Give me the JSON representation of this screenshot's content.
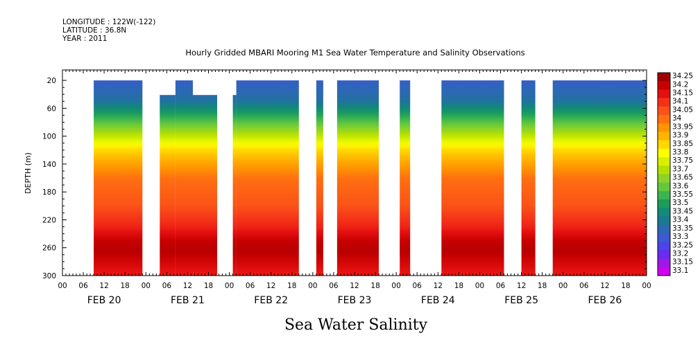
{
  "chart_data": {
    "type": "heatmap",
    "header_lines": [
      "LONGITUDE : 122W(-122)",
      "LATITUDE : 36.8N",
      "YEAR : 2011"
    ],
    "title": "Hourly Gridded MBARI Mooring M1 Sea Water Temperature and Salinity Observations",
    "xlabel": "Sea Water Salinity",
    "ylabel": "DEPTH (m)",
    "xlim_hours": [
      0,
      168
    ],
    "ylim": [
      300,
      5
    ],
    "y_ticks": [
      20,
      60,
      100,
      140,
      180,
      220,
      260,
      300
    ],
    "x_hour_ticks": [
      {
        "hour": 0,
        "label": "00"
      },
      {
        "hour": 6,
        "label": "06"
      },
      {
        "hour": 12,
        "label": "12"
      },
      {
        "hour": 18,
        "label": "18"
      },
      {
        "hour": 24,
        "label": "00"
      },
      {
        "hour": 30,
        "label": "06"
      },
      {
        "hour": 36,
        "label": "12"
      },
      {
        "hour": 42,
        "label": "18"
      },
      {
        "hour": 48,
        "label": "00"
      },
      {
        "hour": 54,
        "label": "06"
      },
      {
        "hour": 60,
        "label": "12"
      },
      {
        "hour": 66,
        "label": "18"
      },
      {
        "hour": 72,
        "label": "00"
      },
      {
        "hour": 78,
        "label": "06"
      },
      {
        "hour": 84,
        "label": "12"
      },
      {
        "hour": 90,
        "label": "18"
      },
      {
        "hour": 96,
        "label": "00"
      },
      {
        "hour": 102,
        "label": "06"
      },
      {
        "hour": 108,
        "label": "12"
      },
      {
        "hour": 114,
        "label": "18"
      },
      {
        "hour": 120,
        "label": "00"
      },
      {
        "hour": 126,
        "label": "06"
      },
      {
        "hour": 132,
        "label": "12"
      },
      {
        "hour": 138,
        "label": "18"
      },
      {
        "hour": 144,
        "label": "00"
      },
      {
        "hour": 150,
        "label": "06"
      },
      {
        "hour": 156,
        "label": "12"
      },
      {
        "hour": 162,
        "label": "18"
      },
      {
        "hour": 168,
        "label": "00"
      }
    ],
    "x_date_labels": [
      {
        "hour": 12,
        "label": "FEB 20"
      },
      {
        "hour": 36,
        "label": "FEB 21"
      },
      {
        "hour": 60,
        "label": "FEB 22"
      },
      {
        "hour": 84,
        "label": "FEB 23"
      },
      {
        "hour": 108,
        "label": "FEB 24"
      },
      {
        "hour": 132,
        "label": "FEB 25"
      },
      {
        "hour": 156,
        "label": "FEB 26"
      }
    ],
    "data_segments_hours": [
      [
        9,
        23,
        20
      ],
      [
        28,
        32.5,
        41
      ],
      [
        32.5,
        37.5,
        20
      ],
      [
        37.5,
        44.5,
        41
      ],
      [
        49,
        50,
        41
      ],
      [
        50,
        68,
        20
      ],
      [
        73,
        75,
        20
      ],
      [
        79,
        91,
        20
      ],
      [
        97,
        100,
        20
      ],
      [
        109,
        127,
        20
      ],
      [
        132,
        136,
        20
      ],
      [
        141,
        168,
        20
      ]
    ],
    "profile": [
      {
        "depth": 20,
        "value": 33.32
      },
      {
        "depth": 50,
        "value": 33.38
      },
      {
        "depth": 75,
        "value": 33.55
      },
      {
        "depth": 100,
        "value": 33.72
      },
      {
        "depth": 120,
        "value": 33.85
      },
      {
        "depth": 140,
        "value": 33.93
      },
      {
        "depth": 160,
        "value": 34.0
      },
      {
        "depth": 200,
        "value": 34.05
      },
      {
        "depth": 230,
        "value": 34.12
      },
      {
        "depth": 250,
        "value": 34.2
      },
      {
        "depth": 265,
        "value": 34.22
      },
      {
        "depth": 285,
        "value": 34.17
      },
      {
        "depth": 300,
        "value": 34.13
      }
    ],
    "colorbar": {
      "levels": [
        34.25,
        34.2,
        34.15,
        34.1,
        34.05,
        34,
        33.95,
        33.9,
        33.85,
        33.8,
        33.75,
        33.7,
        33.65,
        33.6,
        33.55,
        33.5,
        33.45,
        33.4,
        33.35,
        33.3,
        33.25,
        33.2,
        33.15,
        33.1
      ],
      "labels": [
        "34.25",
        "34.2",
        "34.15",
        "34.1",
        "34.05",
        "34",
        "33.95",
        "33.9",
        "33.85",
        "33.8",
        "33.75",
        "33.7",
        "33.65",
        "33.6",
        "33.55",
        "33.5",
        "33.45",
        "33.4",
        "33.35",
        "33.3",
        "33.25",
        "33.2",
        "33.15",
        "33.1"
      ],
      "colors": [
        "#a00000",
        "#c80000",
        "#e41010",
        "#f43018",
        "#fa5218",
        "#ff7010",
        "#ff9400",
        "#ffb400",
        "#ffd800",
        "#ffff00",
        "#d8f000",
        "#b4e000",
        "#8cd228",
        "#64c83c",
        "#3cb450",
        "#1c9c5a",
        "#128c78",
        "#1a7890",
        "#2c68b4",
        "#3c5ad2",
        "#4c44e8",
        "#6a2cf0",
        "#a018e8",
        "#d000f0"
      ]
    },
    "grid": false,
    "legend": "right"
  }
}
